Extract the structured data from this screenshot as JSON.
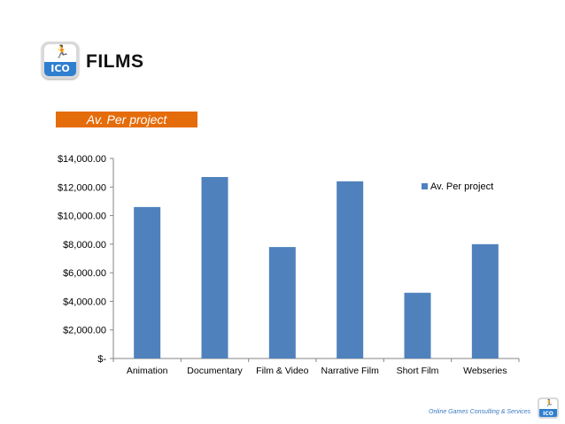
{
  "header": {
    "logo_text": "ICO",
    "logo_icon": "running-man-icon",
    "title": "FILMS"
  },
  "banner": {
    "label": "Av. Per project",
    "color": "#e46c0a"
  },
  "footer": {
    "text": "Online Games Consulting & Services",
    "logo_text": "ICO"
  },
  "colors": {
    "bar": "#4f81bd",
    "accent": "#e46c0a",
    "logo_blue": "#2f7fd0"
  },
  "chart_data": {
    "type": "bar",
    "title": "",
    "xlabel": "",
    "ylabel": "",
    "categories": [
      "Animation",
      "Documentary",
      "Film & Video",
      "Narrative Film",
      "Short Film",
      "Webseries"
    ],
    "series": [
      {
        "name": "Av. Per project",
        "values": [
          10600,
          12700,
          7800,
          12400,
          4600,
          8000
        ]
      }
    ],
    "ylim": [
      0,
      14000
    ],
    "y_ticks": [
      0,
      2000,
      4000,
      6000,
      8000,
      10000,
      12000,
      14000
    ],
    "y_tick_labels": [
      "$-",
      "$2,000.00",
      "$4,000.00",
      "$6,000.00",
      "$8,000.00",
      "$10,000.00",
      "$12,000.00",
      "$14,000.00"
    ],
    "grid": false,
    "legend_position": "top-right"
  }
}
